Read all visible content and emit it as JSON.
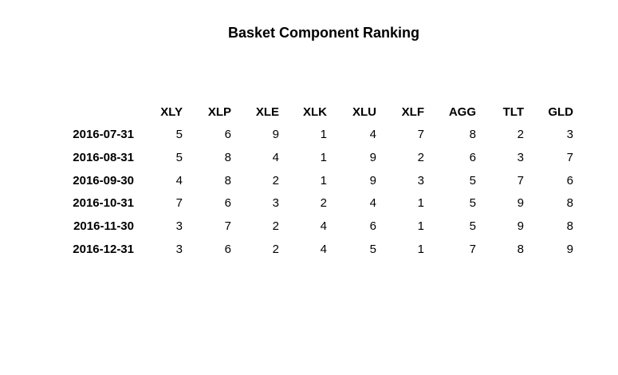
{
  "chart_data": {
    "type": "table",
    "title": "Basket Component Ranking",
    "columns": [
      "XLY",
      "XLP",
      "XLE",
      "XLK",
      "XLU",
      "XLF",
      "AGG",
      "TLT",
      "GLD"
    ],
    "rows": [
      {
        "label": "2016-07-31",
        "values": [
          5,
          6,
          9,
          1,
          4,
          7,
          8,
          2,
          3
        ]
      },
      {
        "label": "2016-08-31",
        "values": [
          5,
          8,
          4,
          1,
          9,
          2,
          6,
          3,
          7
        ]
      },
      {
        "label": "2016-09-30",
        "values": [
          4,
          8,
          2,
          1,
          9,
          3,
          5,
          7,
          6
        ]
      },
      {
        "label": "2016-10-31",
        "values": [
          7,
          6,
          3,
          2,
          4,
          1,
          5,
          9,
          8
        ]
      },
      {
        "label": "2016-11-30",
        "values": [
          3,
          7,
          2,
          4,
          6,
          1,
          5,
          9,
          8
        ]
      },
      {
        "label": "2016-12-31",
        "values": [
          3,
          6,
          2,
          4,
          5,
          1,
          7,
          8,
          9
        ]
      }
    ]
  }
}
